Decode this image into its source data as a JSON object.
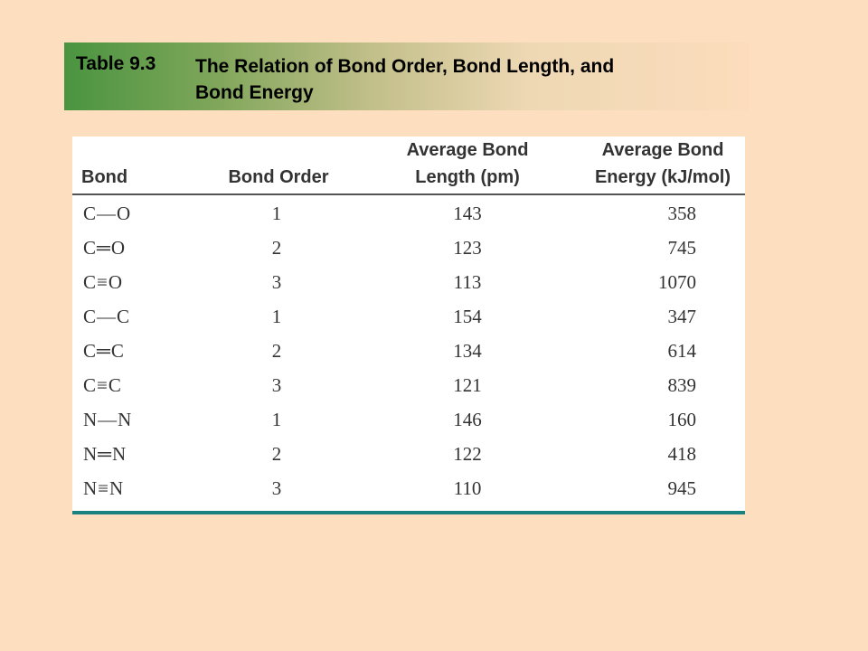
{
  "title": {
    "number": "Table 9.3",
    "line1": "The Relation of Bond Order, Bond Length, and",
    "line2": "Bond Energy"
  },
  "table": {
    "headers": {
      "bond": "Bond",
      "order": "Bond Order",
      "length_line1": "Average Bond",
      "length_line2": "Length (pm)",
      "energy_line1": "Average Bond",
      "energy_line2": "Energy (kJ/mol)"
    },
    "rows": [
      {
        "bond": "C—O",
        "order": "1",
        "length": "143",
        "energy": "358"
      },
      {
        "bond": "C═O",
        "order": "2",
        "length": "123",
        "energy": "745"
      },
      {
        "bond": "C≡O",
        "order": "3",
        "length": "113",
        "energy": "1070"
      },
      {
        "bond": "C—C",
        "order": "1",
        "length": "154",
        "energy": "347"
      },
      {
        "bond": "C═C",
        "order": "2",
        "length": "134",
        "energy": "614"
      },
      {
        "bond": "C≡C",
        "order": "3",
        "length": "121",
        "energy": "839"
      },
      {
        "bond": "N—N",
        "order": "1",
        "length": "146",
        "energy": "160"
      },
      {
        "bond": "N═N",
        "order": "2",
        "length": "122",
        "energy": "418"
      },
      {
        "bond": "N≡N",
        "order": "3",
        "length": "110",
        "energy": "945"
      }
    ]
  },
  "colors": {
    "background": "#fddfc0",
    "banner_start": "#4a9440",
    "table_bottom_rule": "#1a8080"
  }
}
